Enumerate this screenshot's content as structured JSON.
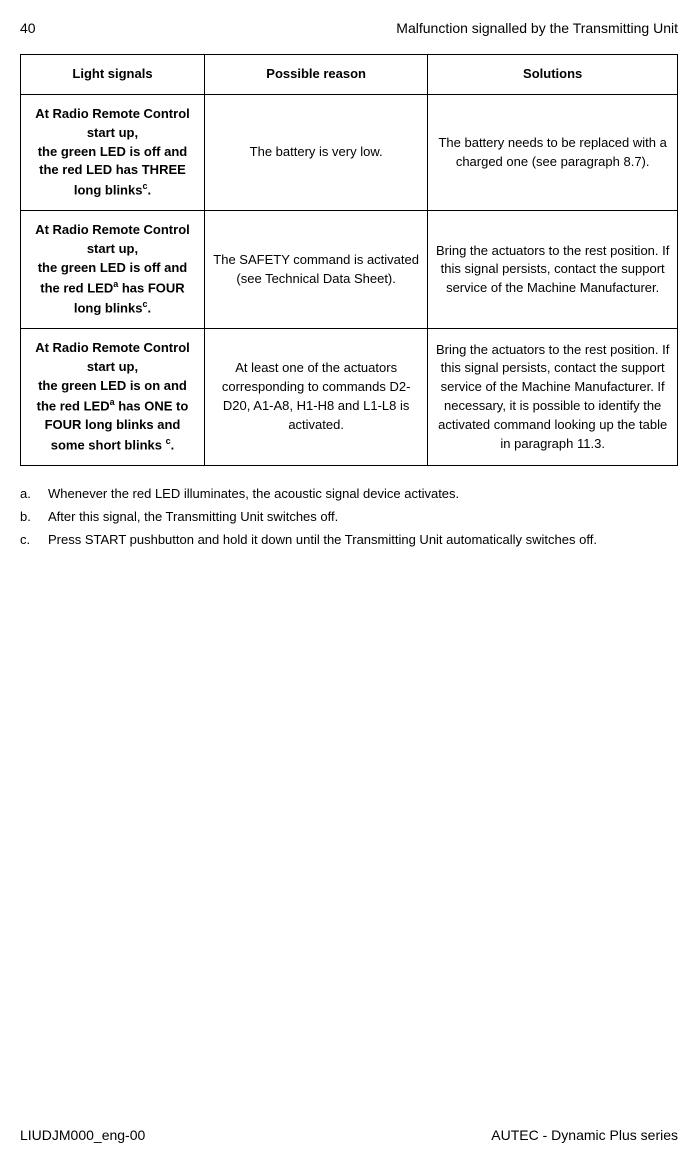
{
  "header": {
    "page_number": "40",
    "title": "Malfunction signalled by the Transmitting Unit"
  },
  "table": {
    "columns": [
      "Light signals",
      "Possible reason",
      "Solutions"
    ],
    "rows": [
      {
        "col1_html": "At Radio Remote Control start up,<br>the green LED is off and<br>the red LED has THREE long blinks<sup>c</sup>.",
        "col2": "The battery is very low.",
        "col3": "The battery needs to be replaced with a charged one (see paragraph 8.7)."
      },
      {
        "col1_html": "At Radio Remote Control start up,<br>the green LED is off and<br>the red LED<sup>a</sup> has FOUR long blinks<sup>c</sup>.",
        "col2": "The SAFETY command is activated (see Technical Data Sheet).",
        "col3": "Bring the actuators to the rest position. If this signal persists, contact the support service of the Machine Manufacturer."
      },
      {
        "col1_html": "At Radio Remote Control start up,<br>the green LED is on and<br>the red LED<sup>a</sup> has ONE to FOUR long blinks and some short blinks <sup>c</sup>.",
        "col2": "At least one of the actuators corresponding to commands D2-D20, A1-A8, H1-H8 and L1-L8 is activated.",
        "col3": "Bring the actuators to the rest position. If this signal persists, contact the support service of the Machine Manufacturer. If necessary, it is possible to identify the activated command looking up the table in paragraph 11.3."
      }
    ]
  },
  "notes": [
    {
      "label": "a.",
      "text": "Whenever the red LED illuminates, the acoustic signal device activates."
    },
    {
      "label": "b.",
      "text": "After this signal, the Transmitting Unit switches off."
    },
    {
      "label": "c.",
      "text": "Press START pushbutton and hold it down until the Transmitting Unit automatically switches off."
    }
  ],
  "footer": {
    "left": "LIUDJM000_eng-00",
    "right": "AUTEC - Dynamic Plus series"
  }
}
